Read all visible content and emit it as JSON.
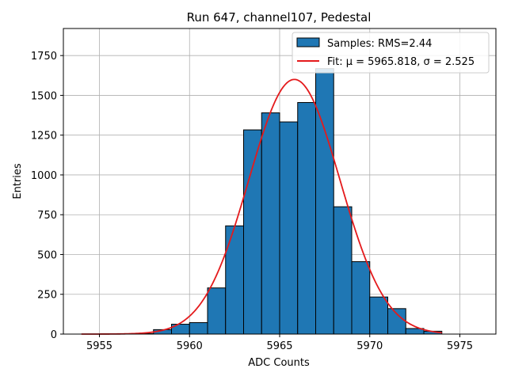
{
  "chart_data": {
    "type": "bar",
    "title": "Run 647, channel107, Pedestal",
    "xlabel": "ADC Counts",
    "ylabel": "Entries",
    "xlim": [
      5953,
      5977
    ],
    "ylim": [
      0,
      1920
    ],
    "xticks": [
      5955,
      5960,
      5965,
      5970,
      5975
    ],
    "yticks": [
      0,
      250,
      500,
      750,
      1000,
      1250,
      1500,
      1750
    ],
    "grid": true,
    "legend_position": "top-right",
    "bar_color": "#1f77b4",
    "bar_edge_color": "#000000",
    "fit_color": "#e41a1c",
    "bins": [
      {
        "left": 5957,
        "count": 3
      },
      {
        "left": 5958,
        "count": 28
      },
      {
        "left": 5959,
        "count": 62
      },
      {
        "left": 5960,
        "count": 72
      },
      {
        "left": 5961,
        "count": 290
      },
      {
        "left": 5962,
        "count": 680
      },
      {
        "left": 5963,
        "count": 1283
      },
      {
        "left": 5964,
        "count": 1390
      },
      {
        "left": 5965,
        "count": 1333
      },
      {
        "left": 5966,
        "count": 1455
      },
      {
        "left": 5967,
        "count": 1668
      },
      {
        "left": 5968,
        "count": 800
      },
      {
        "left": 5969,
        "count": 455
      },
      {
        "left": 5970,
        "count": 233
      },
      {
        "left": 5971,
        "count": 160
      },
      {
        "left": 5972,
        "count": 35
      },
      {
        "left": 5973,
        "count": 18
      }
    ],
    "bin_width": 1,
    "fit": {
      "mu": 5965.818,
      "sigma": 2.525,
      "amplitude": 1600,
      "x_range": [
        5954,
        5974
      ]
    },
    "series": [
      {
        "name": "Samples: RMS=2.44",
        "kind": "histogram"
      },
      {
        "name": "Fit: μ = 5965.818, σ = 2.525",
        "kind": "line"
      }
    ]
  }
}
